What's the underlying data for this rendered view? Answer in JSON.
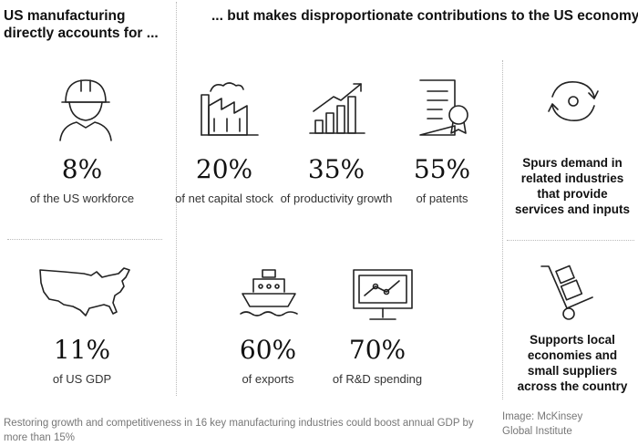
{
  "header": {
    "left": "US manufacturing directly accounts for ...",
    "right": "... but makes disproportionate contributions to the US economy"
  },
  "stats": {
    "workforce": {
      "value": "8%",
      "label": "of the US workforce",
      "icon": "worker-icon"
    },
    "gdp": {
      "value": "11%",
      "label": "of US GDP",
      "icon": "usa-map-icon"
    },
    "capital": {
      "value": "20%",
      "label": "of net capital stock",
      "icon": "factory-icon"
    },
    "productivity": {
      "value": "35%",
      "label": "of productivity growth",
      "icon": "growth-chart-icon"
    },
    "patents": {
      "value": "55%",
      "label": "of patents",
      "icon": "certificate-icon"
    },
    "exports": {
      "value": "60%",
      "label": "of exports",
      "icon": "ship-icon"
    },
    "rd": {
      "value": "70%",
      "label": "of R&D spending",
      "icon": "monitor-chart-icon"
    }
  },
  "side": {
    "demand": {
      "text": "Spurs demand in related industries that provide services and inputs",
      "icon": "cycle-arrows-icon"
    },
    "local": {
      "text": "Supports local economies and small suppliers across the country",
      "icon": "hand-truck-icon"
    }
  },
  "caption": "Restoring growth and competitiveness in 16 key manufacturing industries could boost annual GDP by more than 15%",
  "credit": "Image: McKinsey Global Institute"
}
